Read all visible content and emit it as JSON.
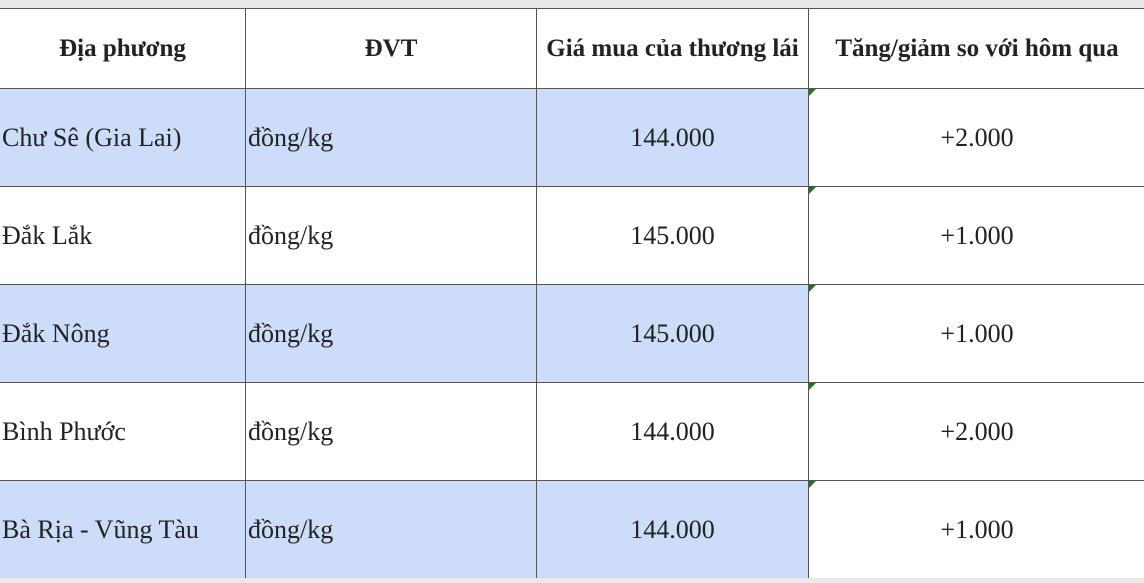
{
  "table": {
    "header": [
      "Địa phương",
      "ĐVT",
      "Giá mua của thương lái",
      "Tăng/giảm so với hôm qua"
    ],
    "rows": [
      [
        "Chư Sê (Gia Lai)",
        "đồng/kg",
        "144.000",
        "+2.000"
      ],
      [
        "Đắk Lắk",
        "đồng/kg",
        "145.000",
        "+1.000"
      ],
      [
        "Đắk Nông",
        "đồng/kg",
        "145.000",
        "+1.000"
      ],
      [
        "Bình Phước",
        "đồng/kg",
        "144.000",
        "+2.000"
      ],
      [
        "Bà Rịa - Vũng Tàu",
        "đồng/kg",
        "144.000",
        "+1.000"
      ]
    ]
  }
}
